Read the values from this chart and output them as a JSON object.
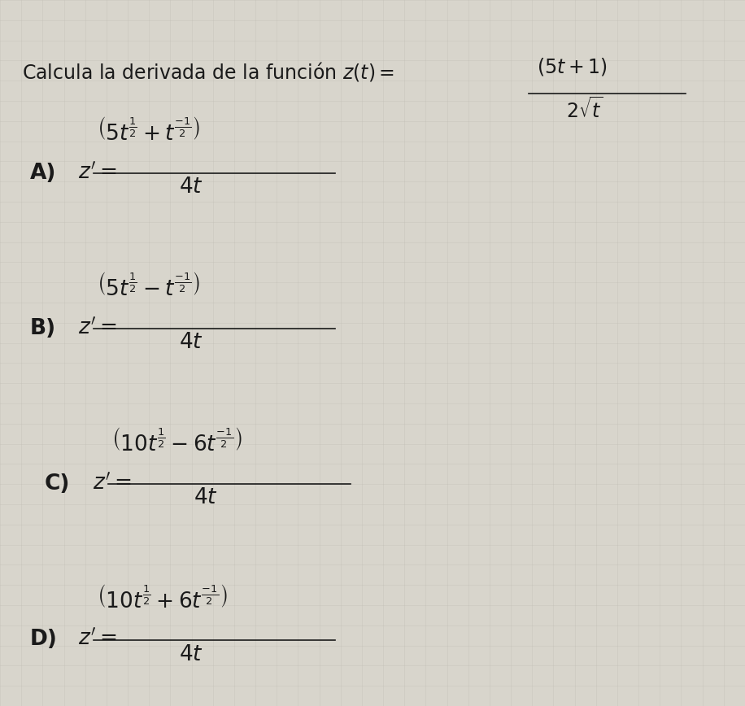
{
  "background_color": "#d8d5cc",
  "grid_color": "#c0bdb4",
  "text_color": "#1a1a1a",
  "title_line1": "Calcula la derivada de la función $z(t) =$",
  "title_frac_num": "$(5t + 1)$",
  "title_frac_den": "$2\\sqrt{t}$",
  "options": [
    {
      "label": "A)",
      "num": "$\\left(5t^{\\frac{1}{2}} + t^{\\frac{-1}{2}}\\right)$",
      "den": "$4t$"
    },
    {
      "label": "B)",
      "num": "$\\left(5t^{\\frac{1}{2}} - t^{\\frac{-1}{2}}\\right)$",
      "den": "$4t$"
    },
    {
      "label": "C)",
      "num": "$\\left(10t^{\\frac{1}{2}} - 6t^{\\frac{-1}{2}}\\right)$",
      "den": "$4t$"
    },
    {
      "label": "D)",
      "num": "$\\left(10t^{\\frac{1}{2}} + 6t^{\\frac{-1}{2}}\\right)$",
      "den": "$4t$"
    }
  ],
  "figsize": [
    9.16,
    8.68
  ],
  "dpi": 100
}
